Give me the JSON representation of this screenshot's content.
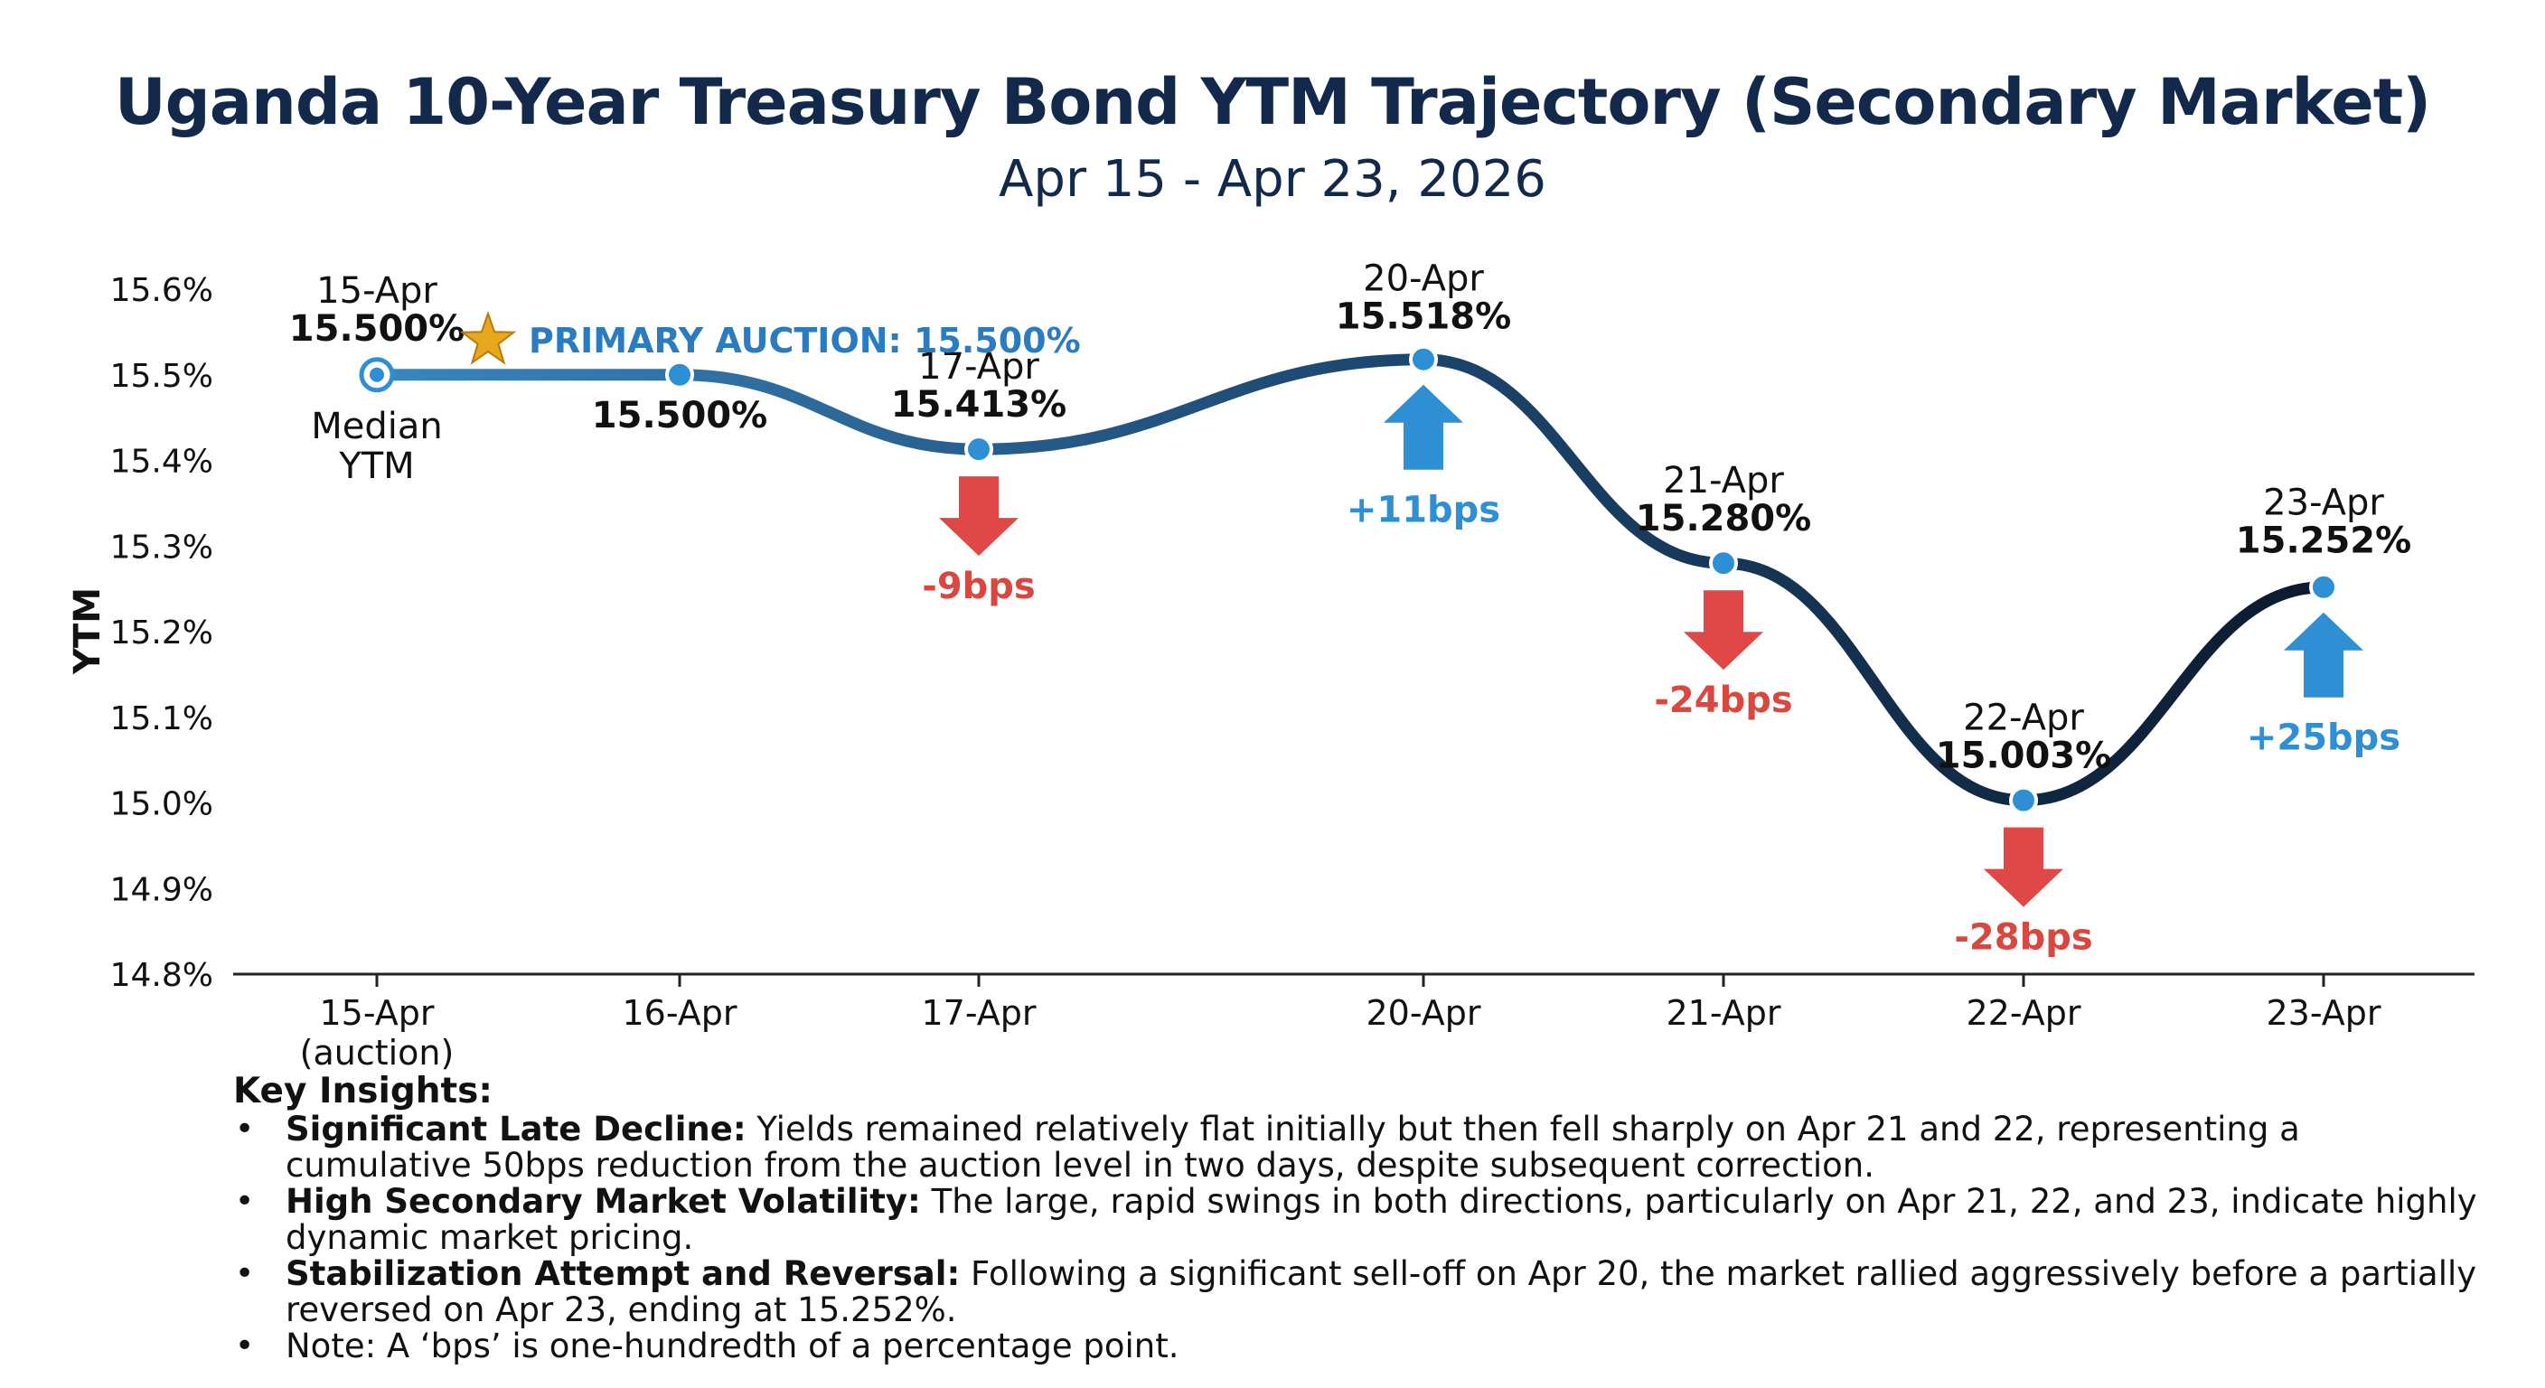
{
  "title": "Uganda 10-Year Treasury Bond YTM Trajectory (Secondary Market)",
  "subtitle": "Apr 15 - Apr 23, 2026",
  "colors": {
    "title": "#13294b",
    "line_start": "#3a86bd",
    "line_end": "#0b1a2e",
    "marker": "#2e8fd4",
    "up_arrow": "#2e8fd4",
    "down_arrow": "#e04848",
    "up_text": "#2e8fd4",
    "down_text": "#d9473f",
    "auction_text": "#2a7bbf",
    "star": "#e8a81e"
  },
  "chart_data": {
    "type": "line",
    "title": "Uganda 10-Year Treasury Bond YTM Trajectory (Secondary Market)",
    "subtitle": "Apr 15 - Apr 23, 2026",
    "xlabel": "",
    "ylabel": "YTM",
    "ylim": [
      14.8,
      15.6
    ],
    "yticks": [
      14.8,
      14.9,
      15.0,
      15.1,
      15.2,
      15.3,
      15.4,
      15.5,
      15.6
    ],
    "ytick_labels": [
      "14.8%",
      "14.9%",
      "15.0%",
      "15.1%",
      "15.2%",
      "15.3%",
      "15.4%",
      "15.5%",
      "15.6%"
    ],
    "categories": [
      "15-Apr",
      "16-Apr",
      "17-Apr",
      "20-Apr",
      "21-Apr",
      "22-Apr",
      "23-Apr"
    ],
    "xtick_labels": [
      "15-Apr",
      "16-Apr",
      "17-Apr",
      "20-Apr",
      "21-Apr",
      "22-Apr",
      "23-Apr"
    ],
    "xtick_sublabels": [
      "(auction)",
      "",
      "",
      "",
      "",
      "",
      ""
    ],
    "x_days": [
      15,
      16,
      17,
      20,
      21,
      22,
      23
    ],
    "series": [
      {
        "name": "Median YTM",
        "values": [
          15.5,
          15.5,
          15.413,
          15.518,
          15.28,
          15.003,
          15.252
        ]
      }
    ],
    "point_dates": [
      "15-Apr",
      "",
      "17-Apr",
      "20-Apr",
      "21-Apr",
      "22-Apr",
      "23-Apr"
    ],
    "point_labels": [
      "15.500%",
      "15.500%",
      "15.413%",
      "15.518%",
      "15.280%",
      "15.003%",
      "15.252%"
    ],
    "changes": [
      {
        "index": 2,
        "label": "-9bps",
        "direction": "down"
      },
      {
        "index": 3,
        "label": "+11bps",
        "direction": "up"
      },
      {
        "index": 4,
        "label": "-24bps",
        "direction": "down"
      },
      {
        "index": 5,
        "label": "-28bps",
        "direction": "down"
      },
      {
        "index": 6,
        "label": "+25bps",
        "direction": "up"
      }
    ],
    "annotations": {
      "primary_auction": "PRIMARY AUCTION: 15.500%",
      "series_label_line1": "Median",
      "series_label_line2": "YTM"
    },
    "grid": false
  },
  "insights": {
    "heading": "Key Insights:",
    "bullet": "•",
    "items": [
      {
        "bold": "Significant Late Decline:",
        "text": " Yields remained relatively flat initially but then fell sharply on Apr 21 and 22, representing a cumulative 50bps reduction from the auction level in two days, despite subsequent correction."
      },
      {
        "bold": "High Secondary Market Volatility:",
        "text": " The large, rapid swings in both directions, particularly on Apr 21, 22, and 23, indicate highly dynamic market pricing."
      },
      {
        "bold": "Stabilization Attempt and Reversal:",
        "text": " Following a significant sell-off on Apr 20, the market rallied aggressively before a partially reversed on Apr 23, ending at 15.252%."
      },
      {
        "bold": "",
        "text": "Note: A ‘bps’ is one-hundredth of a percentage point."
      }
    ]
  }
}
